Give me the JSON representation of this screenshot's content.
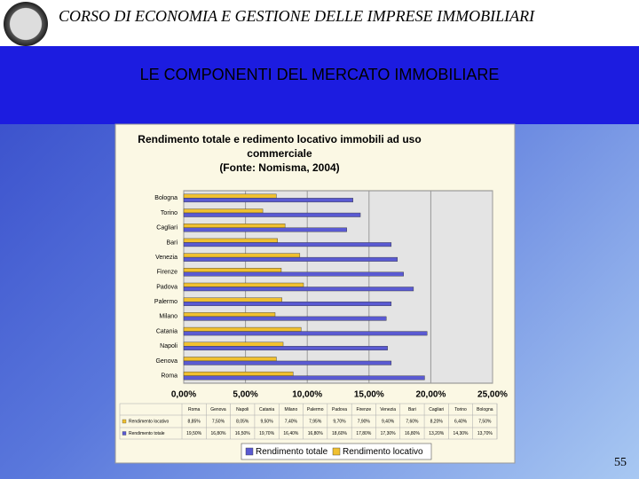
{
  "slide": {
    "header": "CORSO DI ECONOMIA E GESTIONE DELLE IMPRESE IMMOBILIARI",
    "heading": "LE COMPONENTI DEL MERCATO IMMOBILIARE",
    "page_number": "55"
  },
  "chart_data": {
    "type": "hbar",
    "title": [
      "Rendimento totale e redimento locativo immobili ad uso",
      "commerciale",
      "(Fonte:  Nomisma, 2004)"
    ],
    "categories": [
      "Roma",
      "Genova",
      "Napoli",
      "Catania",
      "Milano",
      "Palermo",
      "Padova",
      "Firenze",
      "Venezia",
      "Bari",
      "Cagliari",
      "Torino",
      "Bologna"
    ],
    "series": [
      {
        "name": "Rendimento totale",
        "color": "#5a5ad2",
        "values": [
          19.5,
          16.8,
          16.5,
          19.7,
          16.4,
          16.8,
          18.6,
          17.8,
          17.3,
          16.8,
          13.2,
          14.3,
          13.7
        ],
        "value_labels": [
          "19,50%",
          "16,80%",
          "16,50%",
          "19,70%",
          "16,40%",
          "16,80%",
          "18,60%",
          "17,80%",
          "17,30%",
          "16,80%",
          "13,20%",
          "14,30%",
          "13,70%"
        ]
      },
      {
        "name": "Rendimento locativo",
        "color": "#f0c030",
        "values": [
          8.85,
          7.5,
          8.05,
          9.5,
          7.4,
          7.95,
          9.7,
          7.9,
          9.4,
          7.6,
          8.2,
          6.4,
          7.5
        ],
        "value_labels": [
          "8,85%",
          "7,50%",
          "8,05%",
          "9,50%",
          "7,40%",
          "7,95%",
          "9,70%",
          "7,90%",
          "9,40%",
          "7,60%",
          "8,20%",
          "6,40%",
          "7,50%"
        ]
      }
    ],
    "xlim": [
      0,
      25
    ],
    "xticks": [
      {
        "value": 0,
        "label": "0,00%"
      },
      {
        "value": 5,
        "label": "5,00%"
      },
      {
        "value": 10,
        "label": "10,00%"
      },
      {
        "value": 15,
        "label": "15,00%"
      },
      {
        "value": 20,
        "label": "20,00%"
      },
      {
        "value": 25,
        "label": "25,00%"
      }
    ],
    "grid": true
  }
}
